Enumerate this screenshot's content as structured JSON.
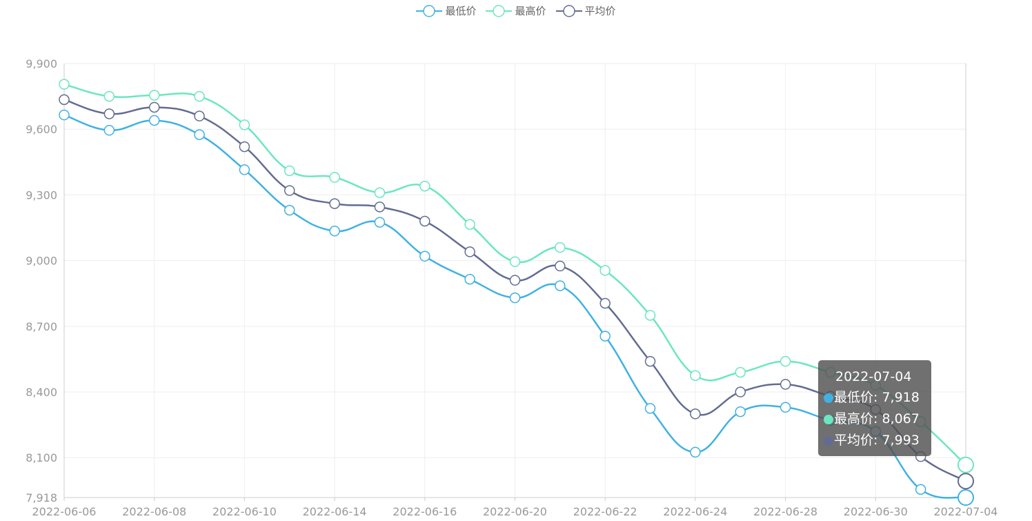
{
  "chart_data": {
    "type": "line",
    "smooth": true,
    "x": [
      "2022-06-06",
      "2022-06-07",
      "2022-06-08",
      "2022-06-09",
      "2022-06-10",
      "2022-06-13",
      "2022-06-14",
      "2022-06-15",
      "2022-06-16",
      "2022-06-17",
      "2022-06-20",
      "2022-06-21",
      "2022-06-22",
      "2022-06-23",
      "2022-06-24",
      "2022-06-27",
      "2022-06-28",
      "2022-06-29",
      "2022-06-30",
      "2022-07-01",
      "2022-07-04"
    ],
    "x_tick_labels": [
      "2022-06-06",
      "2022-06-08",
      "2022-06-10",
      "2022-06-14",
      "2022-06-16",
      "2022-06-20",
      "2022-06-22",
      "2022-06-24",
      "2022-06-28",
      "2022-06-30",
      "2022-07-04"
    ],
    "y_ticks": [
      7918,
      8100,
      8400,
      8700,
      9000,
      9300,
      9600,
      9900
    ],
    "y_tick_labels": [
      "7,918",
      "8,100",
      "8,400",
      "8,700",
      "9,000",
      "9,300",
      "9,600",
      "9,900"
    ],
    "ylim": [
      7918,
      9900
    ],
    "grid": true,
    "legend_position": "top-center",
    "series": [
      {
        "name": "最低价",
        "color": "#3fb1e3",
        "values": [
          9665,
          9595,
          9640,
          9575,
          9415,
          9230,
          9135,
          9175,
          9020,
          8915,
          8830,
          8885,
          8655,
          8325,
          8125,
          8310,
          8330,
          8270,
          8220,
          7955,
          7918
        ]
      },
      {
        "name": "最高价",
        "color": "#6be6c1",
        "values": [
          9805,
          9750,
          9755,
          9750,
          9620,
          9410,
          9380,
          9310,
          9340,
          9165,
          8995,
          9060,
          8955,
          8750,
          8475,
          8490,
          8540,
          8490,
          8430,
          8265,
          8067
        ]
      },
      {
        "name": "平均价",
        "color": "#626c91",
        "values": [
          9735,
          9670,
          9700,
          9660,
          9520,
          9320,
          9260,
          9245,
          9180,
          9040,
          8910,
          8975,
          8805,
          8540,
          8300,
          8400,
          8435,
          8380,
          8320,
          8105,
          7993
        ]
      }
    ]
  },
  "tooltip": {
    "title": "2022-07-04",
    "rows": [
      {
        "label": "最低价: 7,918",
        "color": "#3fb1e3"
      },
      {
        "label": "最高价: 8,067",
        "color": "#6be6c1"
      },
      {
        "label": "平均价: 7,993",
        "color": "#626c91"
      }
    ]
  }
}
